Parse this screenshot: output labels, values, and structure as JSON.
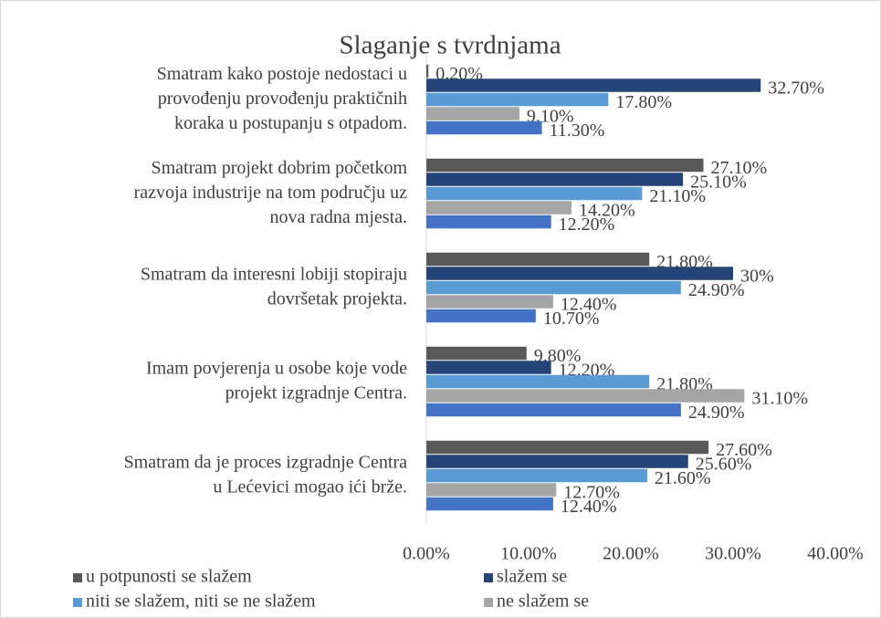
{
  "chart_data": {
    "type": "hbar",
    "title": "Slaganje s tvrdnjama",
    "categories": [
      [
        "Smatram kako postoje nedostaci u",
        "provođenju provođenju praktičnih",
        "koraka u postupanju s otpadom."
      ],
      [
        "Smatram projekt dobrim početkom",
        "razvoja industrije na tom području uz",
        "nova radna mjesta."
      ],
      [
        "Smatram da interesni lobiji stopiraju",
        "dovršetak projekta."
      ],
      [
        "Imam povjerenja u osobe koje vode",
        "projekt izgradnje Centra."
      ],
      [
        "Smatram da je proces izgradnje Centra",
        "u Lećevici mogao ići brže."
      ]
    ],
    "series": [
      {
        "name": "u potpunosti se slažem",
        "color": "#595959",
        "values": [
          0.2,
          27.1,
          21.8,
          9.8,
          27.6
        ],
        "value_labels": [
          "0.20%",
          "27.10%",
          "21.80%",
          "9.80%",
          "27.60%"
        ]
      },
      {
        "name": "slažem se",
        "color": "#264478",
        "values": [
          32.7,
          25.1,
          30,
          12.2,
          25.6
        ],
        "value_labels": [
          "32.70%",
          "25.10%",
          "30%",
          "12.20%",
          "25.60%"
        ]
      },
      {
        "name": "niti se slažem, niti se ne slažem",
        "color": "#5b9bd5",
        "values": [
          17.8,
          21.1,
          24.9,
          21.8,
          21.6
        ],
        "value_labels": [
          "17.80%",
          "21.10%",
          "24.90%",
          "21.80%",
          "21.60%"
        ]
      },
      {
        "name": "ne slažem se",
        "color": "#a5a5a5",
        "values": [
          9.1,
          14.2,
          12.4,
          31.1,
          12.7
        ],
        "value_labels": [
          "9.10%",
          "14.20%",
          "12.40%",
          "31.10%",
          "12.70%"
        ]
      },
      {
        "color": "#4472c4",
        "values": [
          11.3,
          12.2,
          10.7,
          24.9,
          12.4
        ],
        "value_labels": [
          "11.30%",
          "12.20%",
          "10.70%",
          "24.90%",
          "12.40%"
        ]
      }
    ],
    "xlim": [
      0,
      40
    ],
    "xticks": [
      {
        "value": 0,
        "label": "0.00%"
      },
      {
        "value": 10,
        "label": "10.00%"
      },
      {
        "value": 20,
        "label": "20.00%"
      },
      {
        "value": 30,
        "label": "30.00%"
      },
      {
        "value": 40,
        "label": "40.00%"
      }
    ],
    "grid": false,
    "legend": "bottom"
  }
}
